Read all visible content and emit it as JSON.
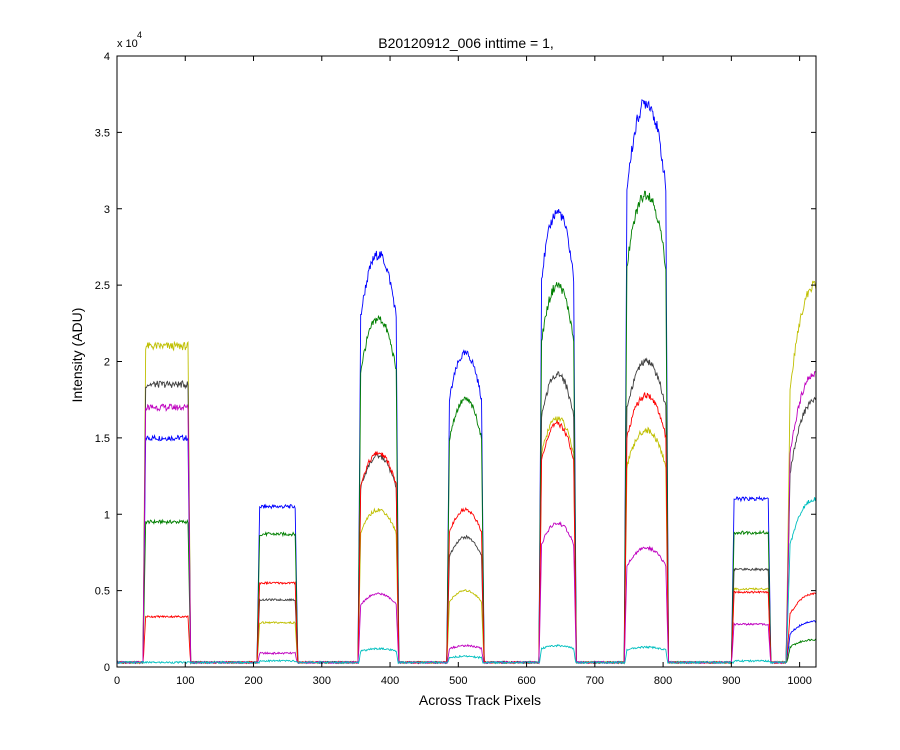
{
  "chart_data": {
    "type": "line",
    "title": "B20120912_006 inttime = 1,",
    "xlabel": "Across Track Pixels",
    "ylabel": "Intensity (ADU)",
    "y_multiplier_label": {
      "base": "x 10",
      "exponent": "4"
    },
    "xlim": [
      0,
      1024
    ],
    "ylim": [
      0,
      40000
    ],
    "x_ticks": [
      0,
      100,
      200,
      300,
      400,
      500,
      600,
      700,
      800,
      900,
      1000
    ],
    "x_tick_labels": [
      "0",
      "100",
      "200",
      "300",
      "400",
      "500",
      "600",
      "700",
      "800",
      "900",
      "1000"
    ],
    "y_ticks": [
      0,
      5000,
      10000,
      15000,
      20000,
      25000,
      30000,
      35000,
      40000
    ],
    "y_tick_labels": [
      "0",
      "0.5",
      "1",
      "1.5",
      "2",
      "2.5",
      "3",
      "3.5",
      "4"
    ],
    "grid": false,
    "legend": "none",
    "baseline": 300,
    "segments": [
      {
        "x_start": 38,
        "x_end": 108,
        "shape": "flat"
      },
      {
        "x_start": 205,
        "x_end": 265,
        "shape": "flat"
      },
      {
        "x_start": 353,
        "x_end": 413,
        "shape": "dome"
      },
      {
        "x_start": 483,
        "x_end": 538,
        "shape": "dome"
      },
      {
        "x_start": 618,
        "x_end": 673,
        "shape": "dome"
      },
      {
        "x_start": 743,
        "x_end": 808,
        "shape": "dome"
      },
      {
        "x_start": 900,
        "x_end": 958,
        "shape": "flat"
      },
      {
        "x_start": 980,
        "x_end": 1024,
        "shape": "rise"
      }
    ],
    "series": [
      {
        "color": "#0000ff",
        "levels": [
          15000,
          10500,
          27000,
          20500,
          29800,
          37000,
          11000,
          3000
        ]
      },
      {
        "color": "#007f00",
        "levels": [
          9500,
          8700,
          22800,
          17500,
          25000,
          31000,
          8800,
          1800
        ]
      },
      {
        "color": "#bfbf00",
        "levels": [
          21000,
          2900,
          10300,
          5000,
          16300,
          15500,
          5100,
          25000
        ]
      },
      {
        "color": "#404040",
        "levels": [
          18500,
          4400,
          13800,
          8500,
          19200,
          20000,
          6400,
          17500
        ]
      },
      {
        "color": "#ff0000",
        "levels": [
          3300,
          5500,
          14000,
          10300,
          15900,
          17800,
          4900,
          4800
        ]
      },
      {
        "color": "#bf00bf",
        "levels": [
          17000,
          900,
          4800,
          1400,
          9400,
          7800,
          2800,
          19200
        ]
      },
      {
        "color": "#00bfbf",
        "levels": [
          300,
          400,
          1200,
          700,
          1400,
          1300,
          400,
          11000
        ]
      }
    ]
  }
}
